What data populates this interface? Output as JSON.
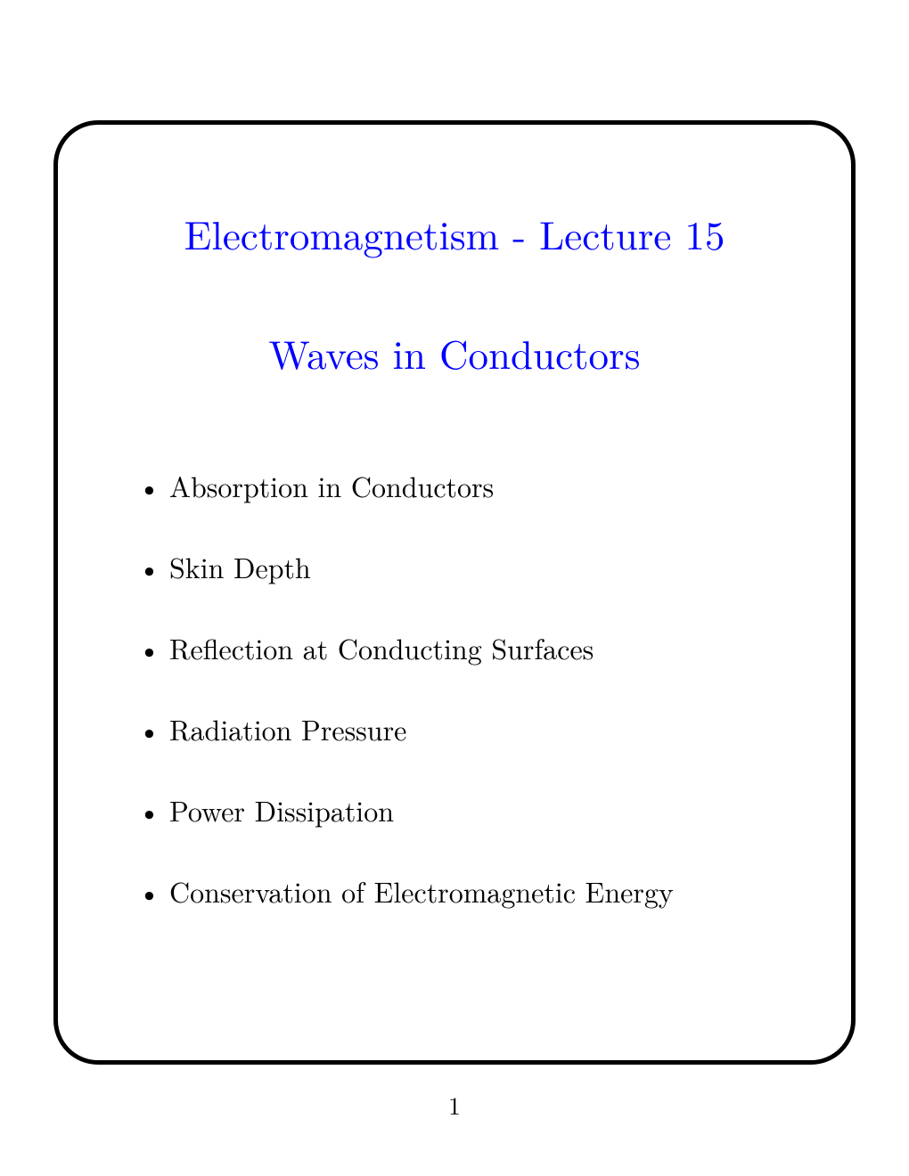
{
  "slide": {
    "title_line1": "Electromagnetism - Lecture 15",
    "title_line2": "Waves in Conductors",
    "title_color": "#0000ff",
    "title_fontsize": 45,
    "bullets": [
      "Absorption in Conductors",
      "Skin Depth",
      "Reflection at Conducting Surfaces",
      "Radiation Pressure",
      "Power Dissipation",
      "Conservation of Electromagnetic Energy"
    ],
    "bullet_fontsize": 32,
    "bullet_color": "#000000",
    "frame_border_color": "#000000",
    "frame_border_width": 5,
    "frame_border_radius": 50,
    "background_color": "#ffffff"
  },
  "page_number": "1"
}
